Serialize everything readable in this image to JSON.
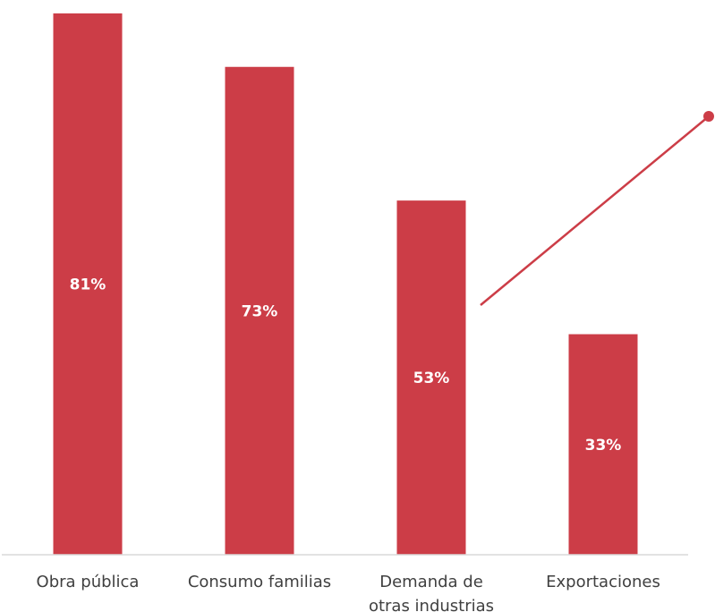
{
  "chart_data": {
    "type": "bar",
    "categories": [
      [
        "Obra pública"
      ],
      [
        "Consumo familias"
      ],
      [
        "Demanda de",
        "otras industrias"
      ],
      [
        "Exportaciones"
      ]
    ],
    "values": [
      81,
      73,
      53,
      33
    ],
    "value_labels": [
      "81%",
      "73%",
      "53%",
      "33%"
    ],
    "ylim": [
      0,
      81
    ],
    "grid": false,
    "legend": "none",
    "colors": {
      "bar": "#cc3d47",
      "axis": "#d9d9d9",
      "label": "#ffffff",
      "tick": "#404040",
      "annotation_line": "#cc3d47"
    },
    "annotation": {
      "type": "callout-line",
      "anchor_category_index": 2
    }
  }
}
